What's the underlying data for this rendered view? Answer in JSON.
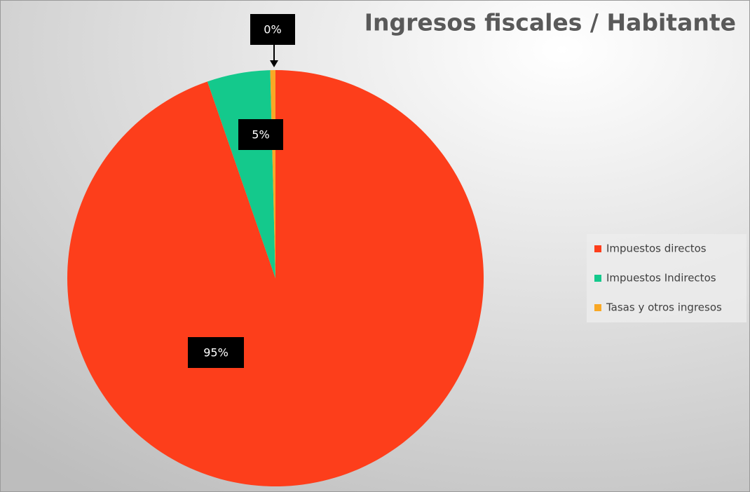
{
  "chart_data": {
    "type": "pie",
    "title": "Ingresos fiscales / Habitante",
    "categories": [
      "Impuestos directos",
      "Impuestos Indirectos",
      "Tasas y otros ingresos"
    ],
    "values": [
      94.7,
      4.9,
      0.4
    ],
    "value_labels": [
      "95%",
      "5%",
      "0%"
    ],
    "colors": [
      "#fd3e1b",
      "#14c98c",
      "#f9a825"
    ],
    "legend": "right"
  }
}
